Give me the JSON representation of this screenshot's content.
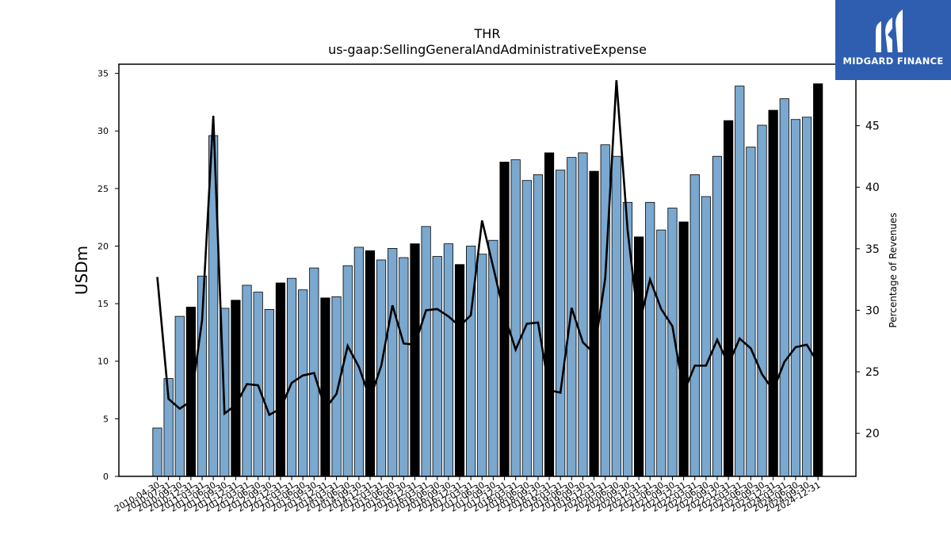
{
  "chart_data": {
    "type": "bar+line",
    "title": "THR",
    "subtitle": "us-gaap:SellingGeneralAndAdministrativeExpense",
    "ylabel": "USDm",
    "y2label": "Percentage of Revenues",
    "ylim": [
      0,
      35.8
    ],
    "y2lim": [
      16.5,
      50
    ],
    "yticks": [
      "0",
      "5",
      "10",
      "15",
      "20",
      "25",
      "30",
      "35"
    ],
    "y2ticks": [
      "20",
      "25",
      "30",
      "35",
      "40",
      "45"
    ],
    "categories": [
      "2010-04-30",
      "2010-07-31",
      "2010-09-30",
      "2010-12-31",
      "2011-03-31",
      "2011-06-30",
      "2011-09-30",
      "2011-12-31",
      "2012-03-31",
      "2012-06-30",
      "2012-09-30",
      "2012-12-31",
      "2013-03-31",
      "2013-06-30",
      "2013-09-30",
      "2013-12-31",
      "2014-03-31",
      "2014-06-30",
      "2014-09-30",
      "2014-12-31",
      "2015-03-31",
      "2015-06-30",
      "2015-09-30",
      "2015-12-31",
      "2016-03-31",
      "2016-06-30",
      "2016-09-30",
      "2016-12-31",
      "2017-03-31",
      "2017-06-30",
      "2017-09-30",
      "2017-12-31",
      "2018-03-31",
      "2018-06-30",
      "2018-09-30",
      "2018-12-31",
      "2019-03-31",
      "2019-06-30",
      "2019-09-30",
      "2019-12-31",
      "2020-03-31",
      "2020-06-30",
      "2020-09-30",
      "2020-12-31",
      "2021-03-31",
      "2021-06-30",
      "2021-09-30",
      "2021-12-31",
      "2022-03-31",
      "2022-06-30",
      "2022-09-30",
      "2022-12-31",
      "2023-03-31",
      "2023-06-30",
      "2023-09-30",
      "2023-12-31",
      "2024-03-31",
      "2024-06-30",
      "2024-09-30",
      "2024-12-31"
    ],
    "series": [
      {
        "type": "bar",
        "values": [
          4.2,
          8.5,
          13.9,
          14.7,
          17.4,
          29.6,
          14.6,
          15.3,
          16.6,
          16.0,
          14.5,
          16.8,
          17.2,
          16.2,
          18.1,
          15.5,
          15.6,
          18.3,
          19.9,
          19.6,
          18.8,
          19.8,
          19.0,
          20.2,
          21.7,
          19.1,
          20.2,
          18.4,
          20.0,
          19.3,
          20.5,
          27.3,
          27.5,
          25.7,
          26.2,
          28.1,
          26.6,
          27.7,
          28.1,
          26.5,
          28.8,
          27.8,
          23.8,
          20.8,
          23.8,
          21.4,
          23.3,
          22.1,
          26.2,
          24.3,
          27.8,
          30.9,
          33.9,
          28.6,
          30.5,
          31.8,
          32.8,
          31.0,
          31.2,
          34.1
        ],
        "highlight": [
          false,
          false,
          false,
          true,
          false,
          false,
          false,
          true,
          false,
          false,
          false,
          true,
          false,
          false,
          false,
          true,
          false,
          false,
          false,
          true,
          false,
          false,
          false,
          true,
          false,
          false,
          false,
          true,
          false,
          false,
          false,
          true,
          false,
          false,
          false,
          true,
          false,
          false,
          false,
          true,
          false,
          false,
          false,
          true,
          false,
          false,
          false,
          true,
          false,
          false,
          false,
          true,
          false,
          false,
          false,
          true,
          false,
          false,
          false,
          true
        ],
        "color": "#7aa8cf",
        "highlight_color": "#000000"
      },
      {
        "type": "line",
        "axis": "right",
        "values": [
          32.7,
          22.8,
          22.0,
          22.6,
          29.2,
          45.8,
          21.6,
          22.3,
          24.0,
          23.9,
          21.5,
          22.0,
          24.1,
          24.7,
          24.9,
          22.0,
          23.2,
          27.1,
          25.4,
          22.8,
          25.5,
          30.4,
          27.3,
          27.2,
          30.0,
          30.1,
          29.5,
          28.7,
          29.6,
          37.3,
          33.5,
          29.6,
          26.8,
          28.9,
          29.0,
          23.5,
          23.3,
          30.2,
          27.4,
          26.5,
          32.6,
          48.7,
          36.5,
          28.7,
          32.5,
          30.1,
          28.7,
          23.3,
          25.5,
          25.5,
          27.6,
          25.6,
          27.7,
          26.9,
          24.8,
          23.5,
          25.8,
          27.0,
          27.2,
          25.7
        ],
        "color": "#000000"
      }
    ],
    "grid": false,
    "legend": "none"
  },
  "logo": {
    "text": "MIDGARD FINANCE",
    "icon": "midgard-m-logo-icon"
  }
}
